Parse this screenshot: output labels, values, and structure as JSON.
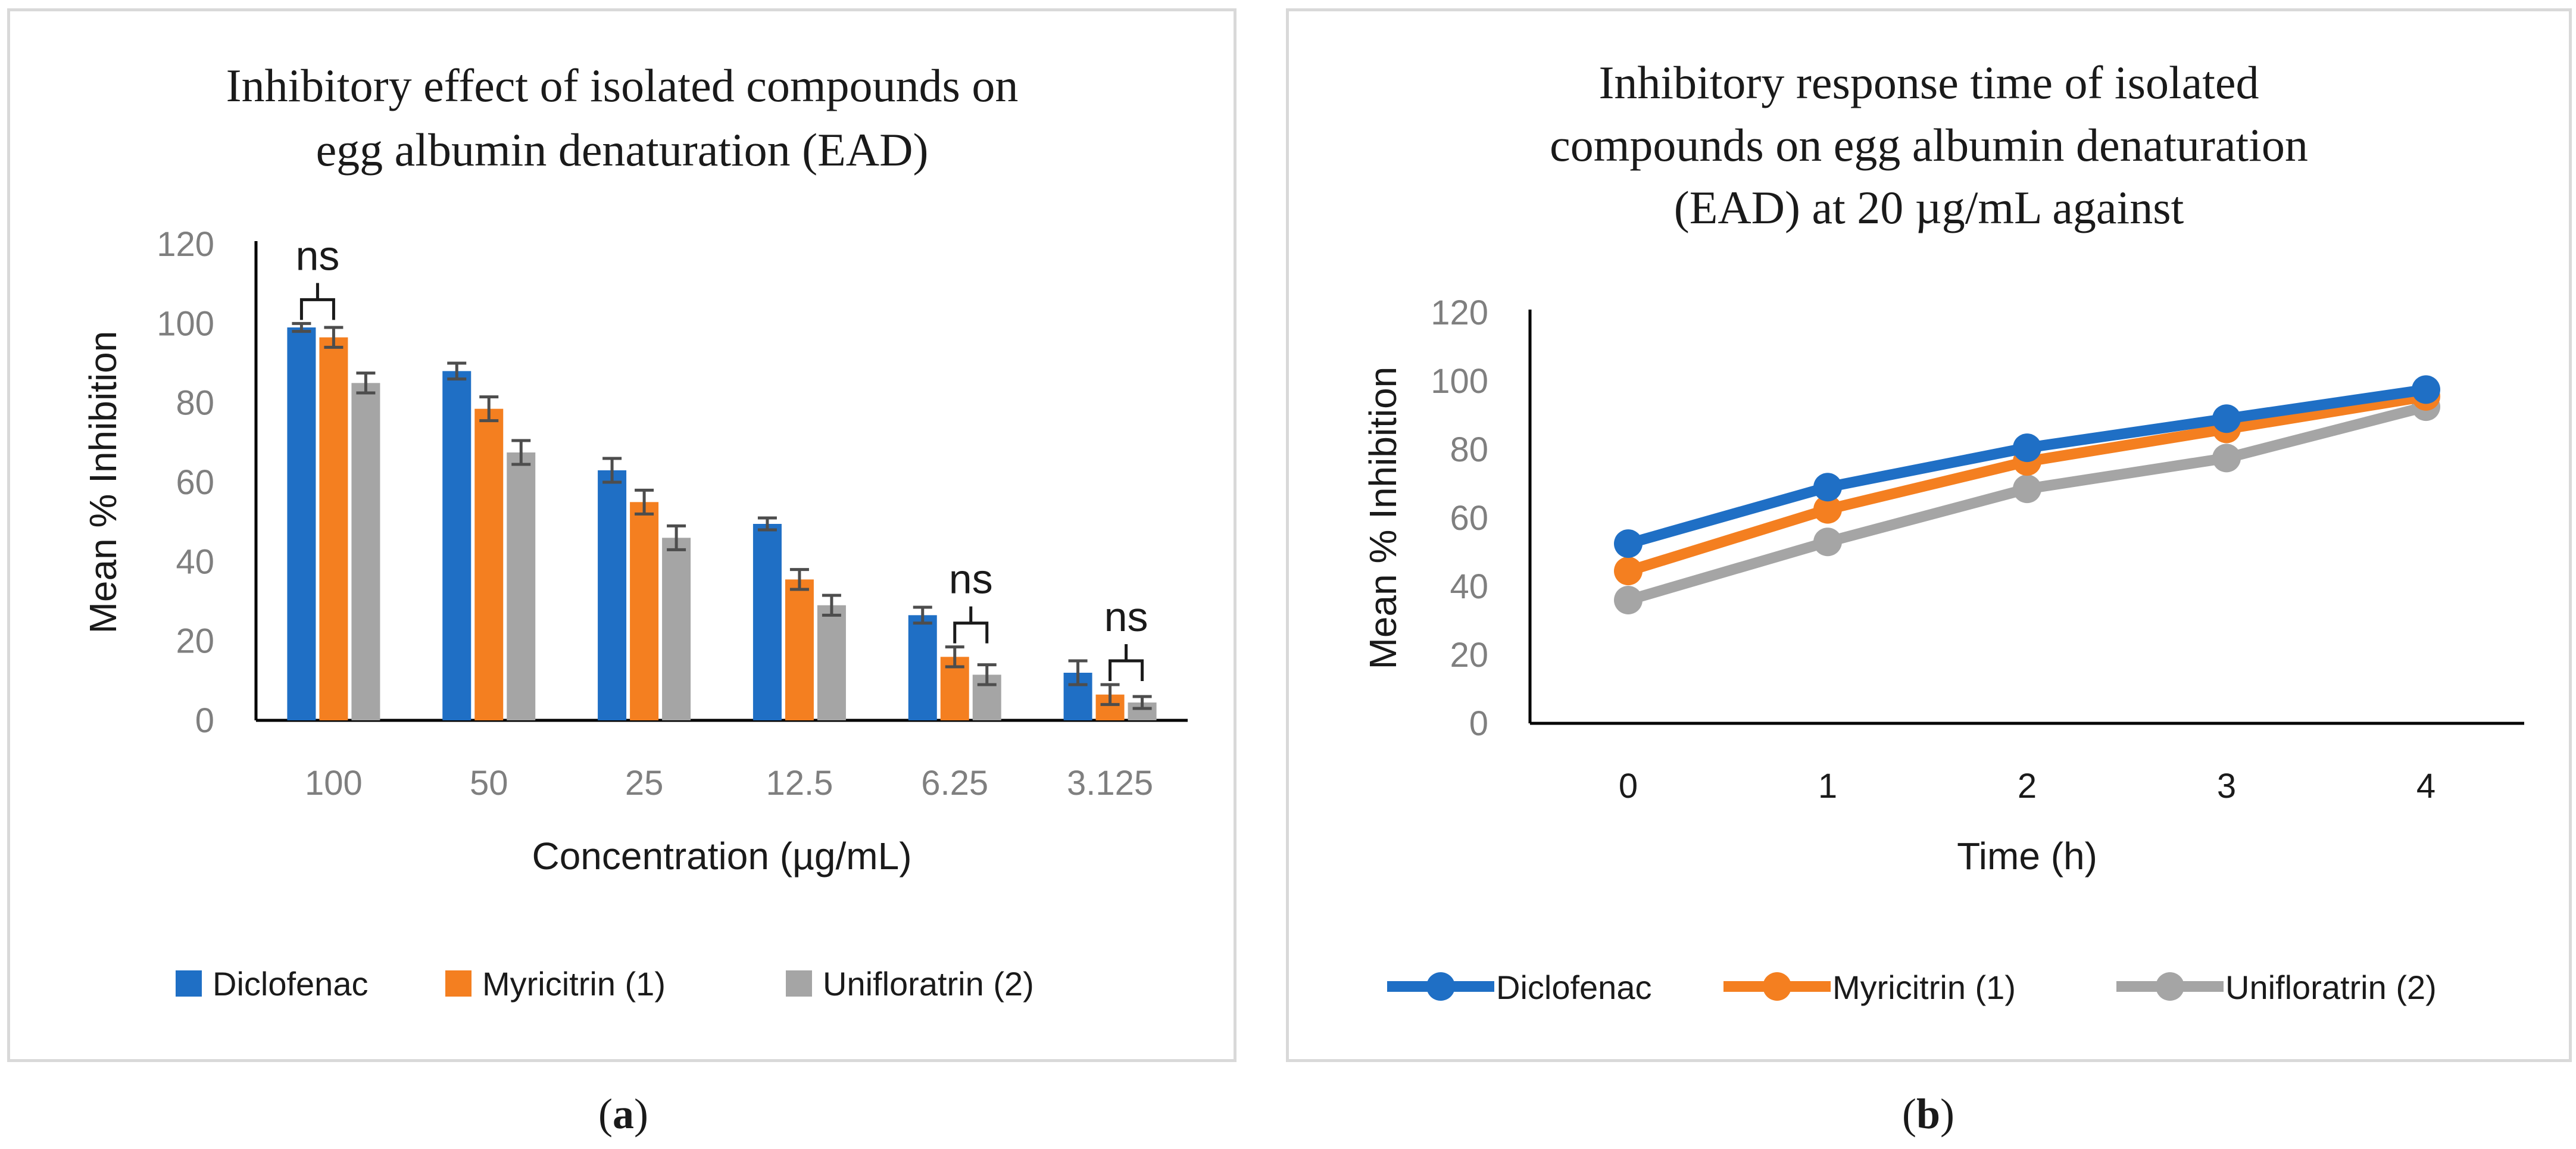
{
  "panel_labels": {
    "a": "a",
    "b": "b"
  },
  "colors": {
    "Diclofenac": "#1f6fc5",
    "Myricitrin (1)": "#f47f20",
    "Unifloratrin (2)": "#a5a5a5",
    "error_bar": "#4d4d4d",
    "axis": "#000000"
  },
  "chart_data": [
    {
      "type": "bar",
      "title_lines": [
        "Inhibitory effect of isolated compounds on",
        "egg albumin denaturation (EAD)"
      ],
      "xlabel": "Concentration (µg/mL)",
      "ylabel": "Mean % Inhibition",
      "ylim": [
        0,
        120
      ],
      "yticks": [
        0,
        20,
        40,
        60,
        80,
        100,
        120
      ],
      "categories": [
        "100",
        "50",
        "25",
        "12.5",
        "6.25",
        "3.125"
      ],
      "series": [
        {
          "name": "Diclofenac",
          "values": [
            99,
            88,
            63,
            49.5,
            26.5,
            12
          ],
          "errors": [
            1,
            2,
            3,
            1.5,
            2,
            3
          ]
        },
        {
          "name": "Myricitrin (1)",
          "values": [
            96.5,
            78.5,
            55,
            35.5,
            16,
            6.5
          ],
          "errors": [
            2.5,
            3,
            3,
            2.5,
            2.5,
            2.5
          ]
        },
        {
          "name": "Unifloratrin (2)",
          "values": [
            85,
            67.5,
            46,
            29,
            11.5,
            4.5
          ],
          "errors": [
            2.5,
            3,
            3,
            2.5,
            2.5,
            1.5
          ]
        }
      ],
      "annotations": [
        {
          "text": "ns",
          "category_index": 0,
          "series_from": 0,
          "series_to": 1
        },
        {
          "text": "ns",
          "category_index": 4,
          "series_from": 1,
          "series_to": 2
        },
        {
          "text": "ns",
          "category_index": 5,
          "series_from": 1,
          "series_to": 2
        }
      ],
      "legend": "bottom"
    },
    {
      "type": "line",
      "title_lines": [
        "Inhibitory response time of isolated",
        "compounds on egg albumin denaturation",
        "(EAD) at 20 µg/mL against"
      ],
      "xlabel": "Time (h)",
      "ylabel": "Mean % Inhibition",
      "ylim": [
        0,
        120
      ],
      "yticks": [
        0,
        20,
        40,
        60,
        80,
        100,
        120
      ],
      "x": [
        0,
        1,
        2,
        3,
        4
      ],
      "series": [
        {
          "name": "Diclofenac",
          "values": [
            52.5,
            69,
            80.5,
            89,
            97.5
          ]
        },
        {
          "name": "Myricitrin (1)",
          "values": [
            44.5,
            62.5,
            76.5,
            86,
            95.5
          ]
        },
        {
          "name": "Unifloratrin (2)",
          "values": [
            36,
            53,
            68.5,
            77.5,
            92.5
          ]
        }
      ],
      "legend": "bottom"
    }
  ]
}
